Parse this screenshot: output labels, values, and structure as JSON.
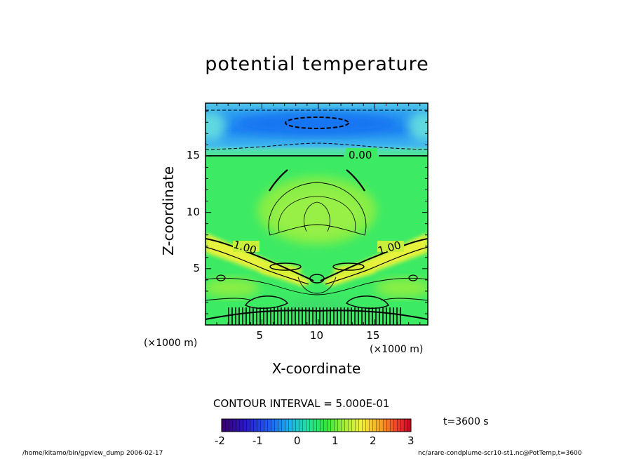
{
  "header": {
    "title": "potential temperature"
  },
  "chart_data": {
    "type": "heatmap",
    "title": "potential temperature",
    "xlabel": "X-coordinate",
    "ylabel": "Z-coordinate",
    "x_unit_label": "(×1000 m)",
    "z_unit_label": "(×1000 m)",
    "xlim": [
      0,
      19.7
    ],
    "ylim": [
      0,
      19.7
    ],
    "x_ticks": [
      5,
      10,
      15
    ],
    "y_ticks": [
      5,
      10,
      15
    ],
    "contour_interval_text": "CONTOUR INTERVAL = 5.000E-01",
    "contour_labels": [
      "0.00",
      "1.00",
      "1.00"
    ],
    "colorbar": {
      "min": -2,
      "max": 3,
      "ticks": [
        "-2",
        "-1",
        "0",
        "1",
        "2",
        "3"
      ]
    },
    "time_label": "t=3600 s",
    "grid": false
  },
  "footer": {
    "left": "/home/kitamo/bin/gpview_dump  2006-02-17",
    "right": "nc/arare-condplume-scr10-st1.nc@PotTemp,t=3600"
  }
}
